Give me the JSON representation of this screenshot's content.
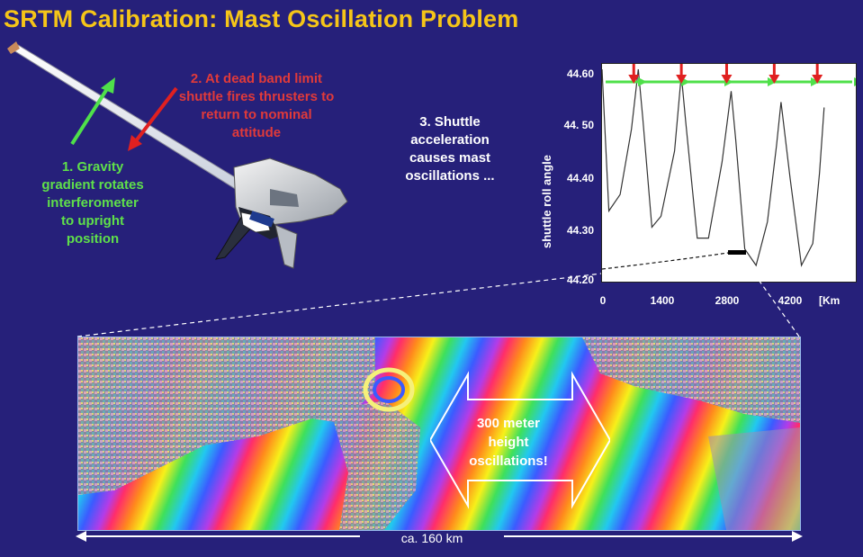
{
  "title": "SRTM Calibration: Mast Oscillation Problem",
  "notes": {
    "gravity": [
      "1. Gravity",
      "gradient rotates",
      "interferometer",
      "to upright",
      "position"
    ],
    "deadband": [
      "2. At dead band limit",
      "shuttle fires thrusters to",
      "return to nominal",
      "attitude"
    ],
    "acceleration": [
      "3. Shuttle",
      "acceleration",
      "causes mast",
      "oscillations ..."
    ]
  },
  "plot": {
    "ylabel": "shuttle roll angle",
    "yticks": [
      "44.60",
      "44. 50",
      "44.40",
      "44.30",
      "44.20"
    ],
    "xticks": [
      "0",
      "1400",
      "2800",
      "4200",
      "[Km"
    ]
  },
  "chart_data": {
    "type": "line",
    "ylabel": "shuttle roll angle",
    "ylim": [
      44.2,
      44.6
    ],
    "xlim": [
      0,
      5600
    ],
    "series": [
      {
        "x": [
          0,
          150,
          400,
          650,
          800,
          900,
          1100,
          1300,
          1600,
          1750,
          1850,
          2100,
          2350,
          2650,
          2850,
          2950,
          3150,
          3400,
          3650,
          3850,
          3950,
          4150,
          4400,
          4650,
          4800,
          4900
        ],
        "y": [
          44.59,
          44.33,
          44.36,
          44.48,
          44.59,
          44.5,
          44.3,
          44.32,
          44.44,
          44.58,
          44.49,
          44.28,
          44.28,
          44.42,
          44.55,
          44.46,
          44.26,
          44.23,
          44.31,
          44.45,
          44.53,
          44.39,
          44.23,
          44.27,
          44.4,
          44.52
        ]
      }
    ],
    "thruster_fire_x": [
      700,
      1750,
      2750,
      3800,
      4750
    ],
    "grid": false
  },
  "image": {
    "height_label": [
      "300 meter",
      "height",
      "oscillations!"
    ],
    "scale_label": "ca. 160 km"
  }
}
